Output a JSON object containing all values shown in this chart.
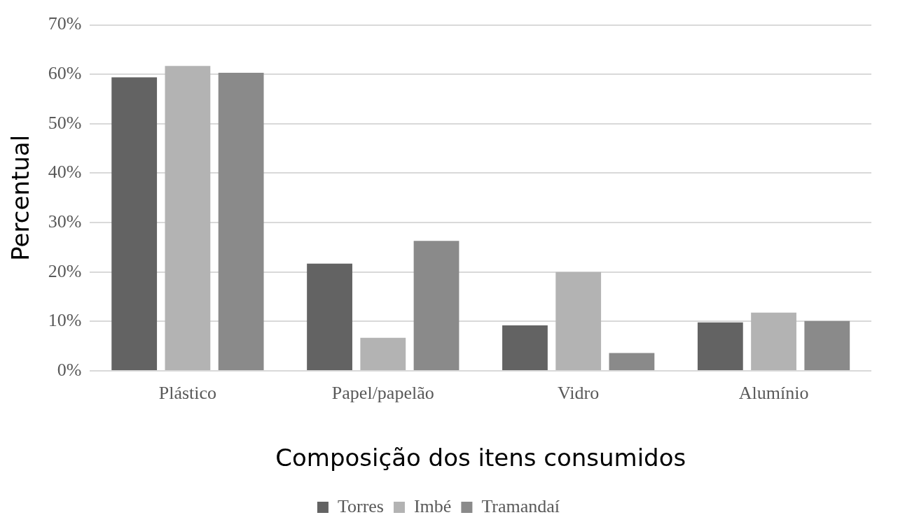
{
  "chart_data": {
    "type": "bar",
    "xlabel": "Composição dos itens consumidos",
    "ylabel": "Percentual",
    "categories": [
      "Plástico",
      "Papel/papelão",
      "Vidro",
      "Alumínio"
    ],
    "series": [
      {
        "name": "Torres",
        "color": "#636363",
        "values": [
          59.4,
          21.7,
          9.2,
          9.8
        ]
      },
      {
        "name": "Imbé",
        "color": "#b3b3b3",
        "values": [
          61.7,
          6.7,
          20.0,
          11.8
        ]
      },
      {
        "name": "Tramandaí",
        "color": "#8a8a8a",
        "values": [
          60.3,
          26.3,
          3.6,
          10.1
        ]
      }
    ],
    "ylim": [
      0,
      70
    ],
    "yticks": [
      {
        "value": 0,
        "label": "0%"
      },
      {
        "value": 10,
        "label": "10%"
      },
      {
        "value": 20,
        "label": "20%"
      },
      {
        "value": 30,
        "label": "30%"
      },
      {
        "value": 40,
        "label": "40%"
      },
      {
        "value": 50,
        "label": "50%"
      },
      {
        "value": 60,
        "label": "60%"
      },
      {
        "value": 70,
        "label": "70%"
      }
    ],
    "grid": "y",
    "legend": "bottom"
  }
}
